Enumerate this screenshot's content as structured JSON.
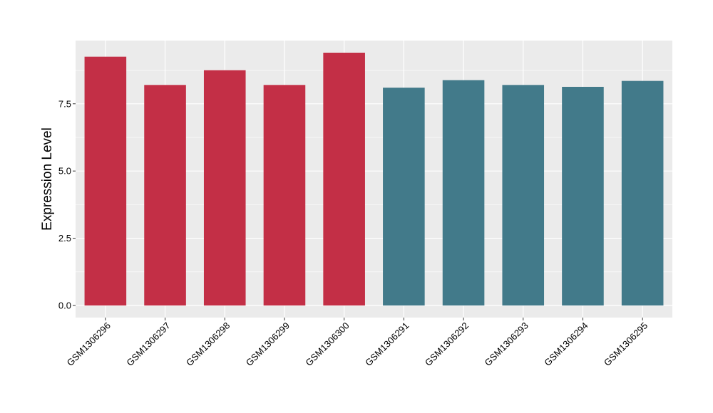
{
  "chart_data": {
    "type": "bar",
    "title": "",
    "xlabel": "",
    "ylabel": "Expression Level",
    "ylim": [
      -0.45,
      9.85
    ],
    "yticks": [
      0.0,
      2.5,
      5.0,
      7.5
    ],
    "ytick_labels": [
      "0.0",
      "2.5",
      "5.0",
      "7.5"
    ],
    "grid": true,
    "legend": "none",
    "categories": [
      "GSM1306296",
      "GSM1306297",
      "GSM1306298",
      "GSM1306299",
      "GSM1306300",
      "GSM1306291",
      "GSM1306292",
      "GSM1306293",
      "GSM1306294",
      "GSM1306295"
    ],
    "values": [
      9.25,
      8.2,
      8.75,
      8.2,
      9.4,
      8.1,
      8.38,
      8.2,
      8.13,
      8.35
    ],
    "bar_colors": [
      "#c32f46",
      "#c32f46",
      "#c32f46",
      "#c32f46",
      "#c32f46",
      "#427a8a",
      "#427a8a",
      "#427a8a",
      "#427a8a",
      "#427a8a"
    ],
    "panel_background": "#ebebeb",
    "grid_color": "#ffffff"
  }
}
